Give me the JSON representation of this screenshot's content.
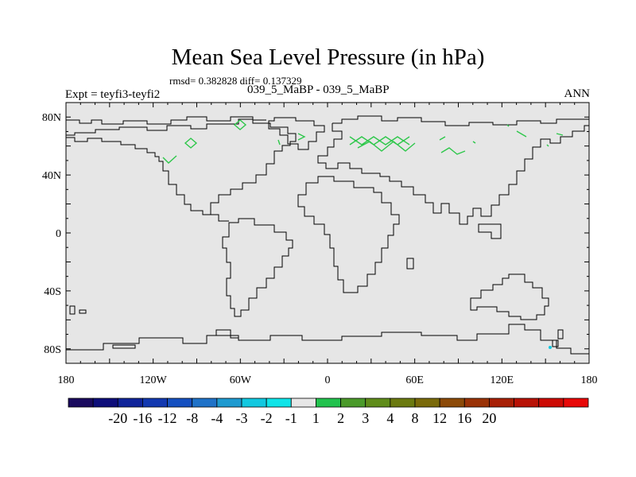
{
  "map": {
    "title": "Mean Sea Level Pressure (in hPa)",
    "stats": "rmsd= 0.382828 diff= 0.137329",
    "experiment": "Expt = teyfi3-teyfi2",
    "periods": "039_5_MaBP - 039_5_MaBP",
    "season": "ANN",
    "lat_ticks": [
      "80N",
      "40N",
      "0",
      "40S",
      "80S"
    ],
    "lon_ticks": [
      "180",
      "120W",
      "60W",
      "0",
      "60E",
      "120E",
      "180"
    ],
    "background_color": "#e6e6e6",
    "coast_color": "#000000",
    "feature_color": "#2dc74a"
  },
  "colorbar": {
    "colors": [
      "#1a0a5e",
      "#0e0e7a",
      "#10249a",
      "#1238b0",
      "#1550c0",
      "#1f72c8",
      "#1e9ad0",
      "#12c8e0",
      "#0fe4e8",
      "#e6e6e6",
      "#22c24e",
      "#4a9a2a",
      "#5f8c1a",
      "#6b7a10",
      "#7a6a0a",
      "#8c4a08",
      "#9a3206",
      "#a82006",
      "#b81206",
      "#cc0a04",
      "#e80808"
    ],
    "labels": [
      "-20",
      "-16",
      "-12",
      "-8",
      "-4",
      "-3",
      "-2",
      "-1",
      "1",
      "2",
      "3",
      "4",
      "8",
      "12",
      "16",
      "20"
    ]
  }
}
